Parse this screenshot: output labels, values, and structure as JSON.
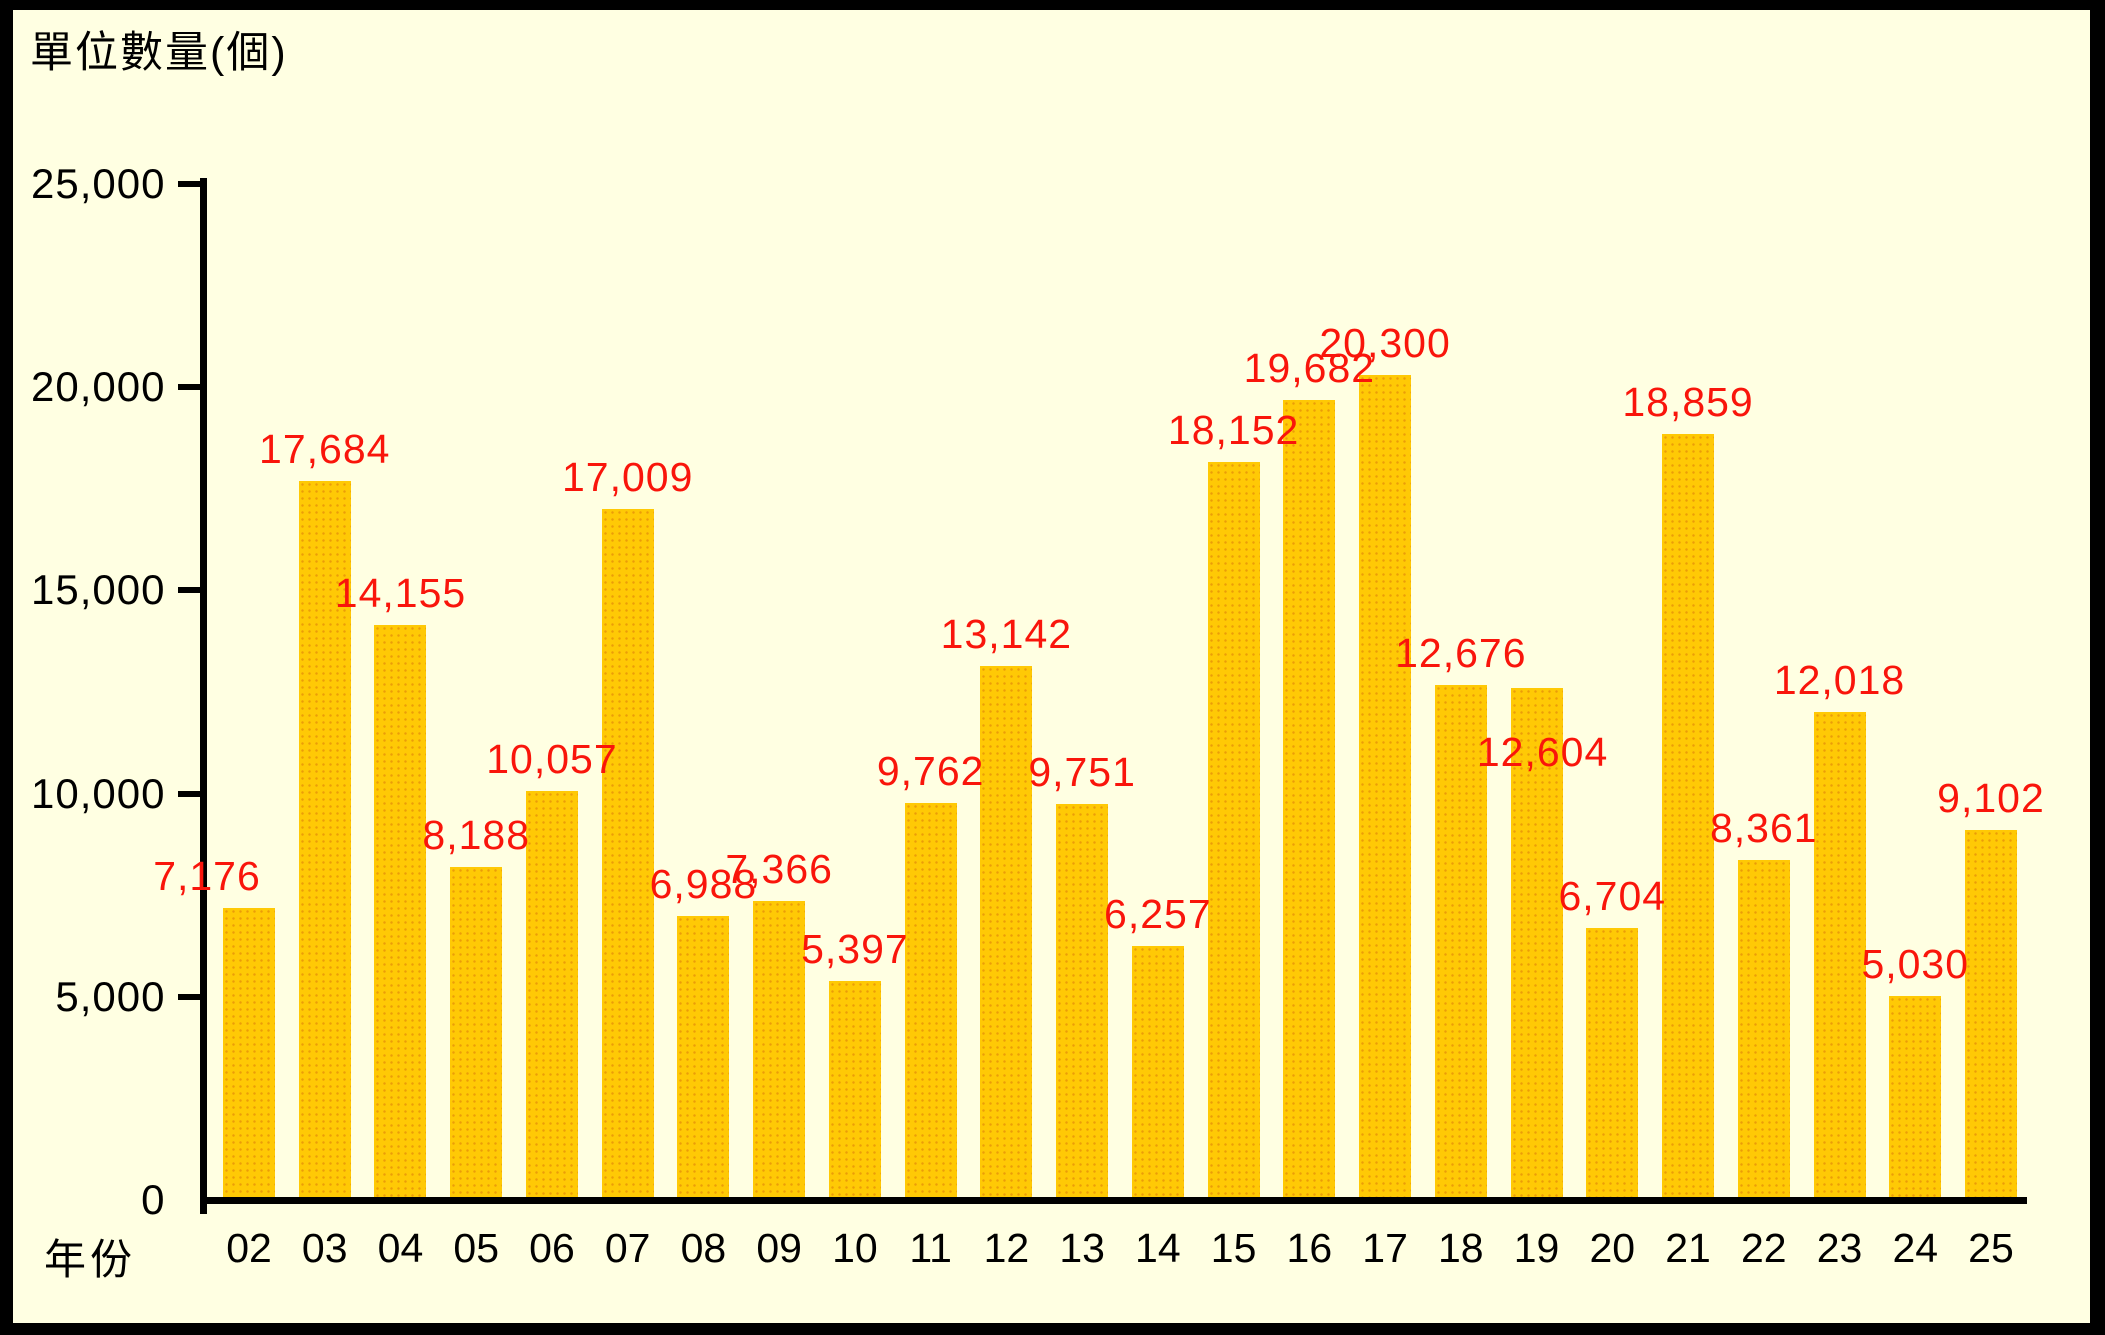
{
  "title": "單位數量(個)",
  "x_axis_title": "年份",
  "colors": {
    "frame": "#000000",
    "background": "#FFFFE2",
    "bar": "#FFC905",
    "bar_dot": "#DB780A",
    "value_label": "#F9150B",
    "axis": "#000000",
    "text": "#000000"
  },
  "chart_data": {
    "type": "bar",
    "title": "單位數量(個)",
    "xlabel": "年份",
    "ylabel": "單位數量(個)",
    "ylim": [
      0,
      25000
    ],
    "ytick_interval": 5000,
    "ytick_labels": [
      "0",
      "5,000",
      "10,000",
      "15,000",
      "20,000",
      "25,000"
    ],
    "grid": false,
    "legend": false,
    "categories": [
      "02",
      "03",
      "04",
      "05",
      "06",
      "07",
      "08",
      "09",
      "10",
      "11",
      "12",
      "13",
      "14",
      "15",
      "16",
      "17",
      "18",
      "19",
      "20",
      "21",
      "22",
      "23",
      "24",
      "25"
    ],
    "values": [
      7176,
      17684,
      14155,
      8188,
      10057,
      17009,
      6988,
      7366,
      5397,
      9762,
      13142,
      9751,
      6257,
      18152,
      19682,
      20300,
      12676,
      12604,
      6704,
      18859,
      8361,
      12018,
      5030,
      9102
    ],
    "value_labels": [
      "7,176",
      "17,684",
      "14,155",
      "8,188",
      "10,057",
      "17,009",
      "6,988",
      "7,366",
      "5,397",
      "9,762",
      "13,142",
      "9,751",
      "6,257",
      "18,152",
      "19,682",
      "20,300",
      "12,676",
      "12,604",
      "6,704",
      "18,859",
      "8,361",
      "12,018",
      "5,030",
      "9,102"
    ],
    "label_offsets": {
      "0": {
        "dx": -42,
        "dy": 0
      },
      "17": {
        "dx": 6,
        "dy": 96
      }
    }
  }
}
